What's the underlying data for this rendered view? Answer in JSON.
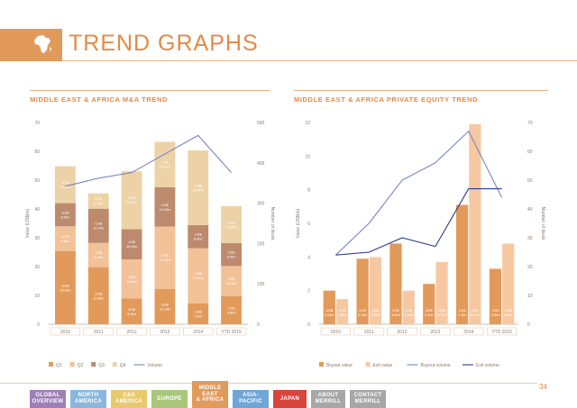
{
  "header": {
    "title": "TREND GRAPHS"
  },
  "charts": {
    "left_title": "MIDDLE EAST & AFRICA M&A TREND",
    "right_title": "MIDDLE EAST & AFRICA PRIVATE EQUITY TREND"
  },
  "chart_data": [
    {
      "type": "bar",
      "stacked": true,
      "title": "MIDDLE EAST & AFRICA M&A TREND",
      "ylabel": "Value (US$bn)",
      "y2label": "Number of deals",
      "ylim": [
        0,
        70
      ],
      "y2lim": [
        0,
        500
      ],
      "yticks": [
        0,
        10,
        20,
        30,
        40,
        50,
        60,
        70
      ],
      "y2ticks": [
        0,
        100,
        200,
        300,
        400,
        500
      ],
      "categories": [
        "2010",
        "2011",
        "2012",
        "2013",
        "2014",
        "YTD 2015"
      ],
      "series": [
        {
          "name": "Q1",
          "values": [
            25.4,
            19.8,
            8.9,
            12.3,
            7.2,
            9.8
          ],
          "labels": [
            "US$ 25.4bn",
            "US$ 19.8bn",
            "US$ 8.9bn",
            "US$ 12.3bn",
            "US$ 7.2bn",
            "US$ 9.8bn"
          ],
          "color": "#e29a5a"
        },
        {
          "name": "Q2",
          "values": [
            8.6,
            8.4,
            13.6,
            21.6,
            19.2,
            10.4
          ],
          "labels": [
            "US$ 8.6bn",
            "US$ 8.4bn",
            "US$ 13.6bn",
            "US$ 21.6bn",
            "US$ 19.2bn",
            "US$ 10.4bn"
          ],
          "color": "#f2c197"
        },
        {
          "name": "Q3",
          "values": [
            8.0,
            11.9,
            10.5,
            13.6,
            8.0,
            8.0
          ],
          "labels": [
            "US$ 8.0bn",
            "US$ 11.9bn",
            "US$ 10.5bn",
            "US$ 13.6bn",
            "US$ 8.0bn",
            "US$ 8.0bn"
          ],
          "color": "#bd8a6d"
        },
        {
          "name": "Q4",
          "values": [
            12.8,
            5.3,
            20.1,
            15.8,
            25.9,
            12.8
          ],
          "labels": [
            "US$ 12.8bn",
            "US$ 5.3bn",
            "US$ 20.1bn",
            "US$ 15.8bn",
            "US$ 25.9bn",
            "US$ 12.8bn"
          ],
          "color": "#ecd2a6"
        },
        {
          "name": "Volume",
          "type": "line",
          "axis": "right",
          "values": [
            342,
            362,
            376,
            422,
            468,
            376
          ],
          "color": "#7b83c3"
        }
      ],
      "legend": "bottom"
    },
    {
      "type": "bar",
      "title": "MIDDLE EAST & AFRICA PRIVATE EQUITY TREND",
      "ylabel": "Value (US$bn)",
      "y2label": "Number of deals",
      "ylim": [
        0,
        12
      ],
      "y2lim": [
        0,
        70
      ],
      "yticks": [
        0,
        2,
        4,
        6,
        8,
        10,
        12
      ],
      "y2ticks": [
        0,
        10,
        20,
        30,
        40,
        50,
        60,
        70
      ],
      "categories": [
        "2010",
        "2011",
        "2012",
        "2013",
        "2014",
        "YTD 2015"
      ],
      "series": [
        {
          "name": "Buyout value",
          "values": [
            2.0,
            3.9,
            4.8,
            2.4,
            7.1,
            3.3
          ],
          "labels": [
            "US$ 2.0bn",
            "US$ 3.9bn",
            "US$ 4.8bn",
            "US$ 2.4bn",
            "US$ 7.1bn",
            "US$ 3.3bn"
          ],
          "color": "#e29a5a"
        },
        {
          "name": "Exit value",
          "values": [
            1.5,
            4.0,
            2.0,
            3.7,
            11.9,
            4.8
          ],
          "labels": [
            "US$ 1.5bn",
            "US$ 4.0bn",
            "US$ 2.0bn",
            "US$ 3.7bn",
            "US$ 11.9bn",
            "US$ 4.8bn"
          ],
          "color": "#f6c8a2"
        },
        {
          "name": "Buyout volume",
          "type": "line",
          "axis": "right",
          "values": [
            24,
            35,
            50,
            56,
            67,
            44
          ],
          "color": "#7b83c3"
        },
        {
          "name": "Exit volume",
          "type": "line",
          "axis": "right",
          "values": [
            24,
            25,
            30,
            27,
            47,
            47
          ],
          "color": "#2b3b8f"
        }
      ],
      "legend": "bottom"
    }
  ],
  "nav": {
    "tabs": [
      {
        "label": "GLOBAL\nOVERVIEW",
        "color": "#9e7fb8"
      },
      {
        "label": "NORTH\nAMERICA",
        "color": "#8bb7de"
      },
      {
        "label": "C&S\nAMERICA",
        "color": "#e8c96b"
      },
      {
        "label": "EUROPE",
        "color": "#a9c77c"
      },
      {
        "label": "MIDDLE EAST\n& AFRICA",
        "color": "#e29a5a"
      },
      {
        "label": "ASIA-\nPACIFIC",
        "color": "#6fa6d8"
      },
      {
        "label": "JAPAN",
        "color": "#d9443d"
      },
      {
        "label": "ABOUT\nMERRILL",
        "color": "#a7a7a7"
      },
      {
        "label": "CONTACT\nMERRILL",
        "color": "#a7a7a7"
      }
    ]
  },
  "page": {
    "number": "34"
  }
}
